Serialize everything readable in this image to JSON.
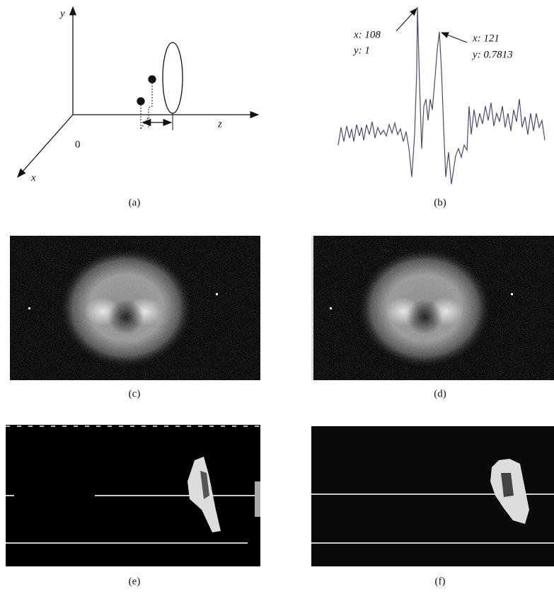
{
  "figure": {
    "panel_a": {
      "axis_y": "y",
      "axis_z": "z",
      "axis_x": "x",
      "origin": "0"
    },
    "panel_b": {
      "annotations": [
        {
          "x": "x: 108",
          "y": "y: 1"
        },
        {
          "x": "x: 121",
          "y": "y: 0.7813"
        }
      ]
    },
    "captions": [
      "(a)",
      "(b)",
      "(c)",
      "(d)",
      "(e)",
      "(f)"
    ]
  }
}
